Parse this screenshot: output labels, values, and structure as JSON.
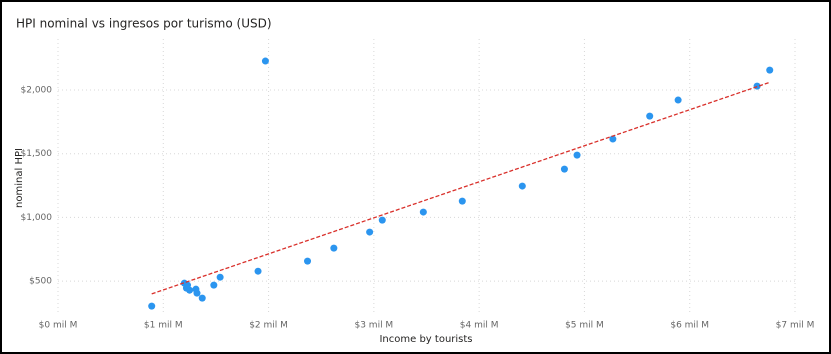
{
  "chart_data": {
    "type": "scatter",
    "title": "HPI nominal vs ingresos por turismo (USD)",
    "x_label": "Income by tourists",
    "y_label": "nominal HPI",
    "x": [
      0.89,
      1.2,
      1.22,
      1.23,
      1.25,
      1.31,
      1.32,
      1.37,
      1.48,
      1.54,
      1.9,
      1.97,
      2.37,
      2.62,
      2.96,
      3.08,
      3.47,
      3.84,
      4.41,
      4.81,
      4.93,
      5.27,
      5.62,
      5.89,
      6.64,
      6.76
    ],
    "values": [
      304,
      484,
      445,
      469,
      429,
      437,
      406,
      367,
      469,
      531,
      578,
      2227,
      657,
      759,
      885,
      979,
      1042,
      1128,
      1246,
      1379,
      1489,
      1615,
      1795,
      1921,
      2030,
      2156
    ],
    "color": "#2b95ef",
    "trend": {
      "x": [
        0.89,
        6.76
      ],
      "y": [
        400,
        2060
      ],
      "color": "#d9302b"
    },
    "xlim": [
      0,
      7
    ],
    "xticks": [
      {
        "value": 0,
        "label": "$0 mil M"
      },
      {
        "value": 1,
        "label": "$1 mil M"
      },
      {
        "value": 2,
        "label": "$2 mil M"
      },
      {
        "value": 3,
        "label": "$3 mil M"
      },
      {
        "value": 4,
        "label": "$4 mil M"
      },
      {
        "value": 5,
        "label": "$5 mil M"
      },
      {
        "value": 6,
        "label": "$6 mil M"
      },
      {
        "value": 7,
        "label": "$7 mil M"
      }
    ],
    "ylim": [
      250,
      2400
    ],
    "yticks": [
      {
        "value": 500,
        "label": "$500"
      },
      {
        "value": 1000,
        "label": "$1,000"
      },
      {
        "value": 1500,
        "label": "$1,500"
      },
      {
        "value": 2000,
        "label": "$2,000"
      }
    ],
    "grid": true
  }
}
